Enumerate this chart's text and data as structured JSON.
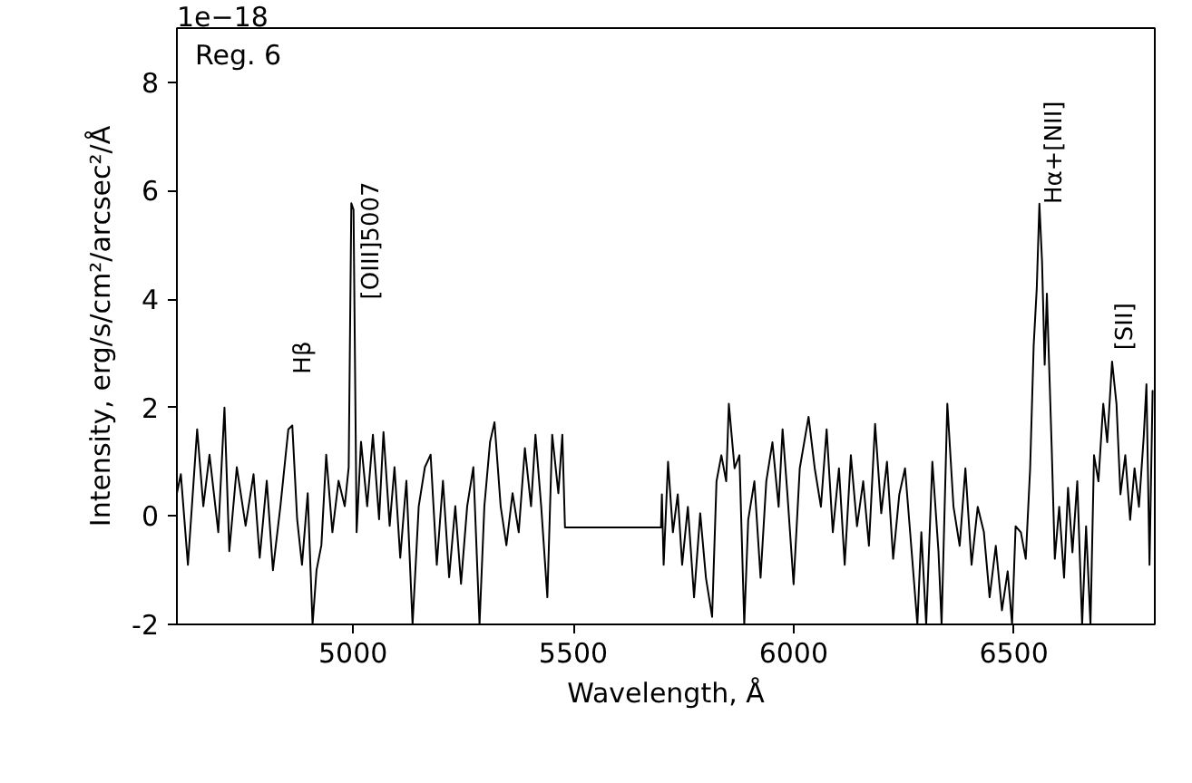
{
  "chart_data": {
    "type": "line",
    "xlabel": "Wavelength, Å",
    "ylabel": "Intensity, erg/s/cm²/arcsec²/Å",
    "annotations": [
      "1e−18",
      "Reg. 6",
      "Hβ",
      "[OIII]5007",
      "Hα+[NII]",
      "[SII]"
    ],
    "xlim": [
      4600,
      6820
    ],
    "ylim": [
      -2,
      9
    ],
    "xticks": [
      5000,
      5500,
      6000,
      6500
    ],
    "yticks": [
      -2,
      0,
      2,
      4,
      6,
      8
    ],
    "grid": false,
    "line_style": "solid",
    "series": [
      {
        "color": "#000000",
        "x": [
          4600,
          4609,
          4625,
          4646,
          4660,
          4674,
          4694,
          4708,
          4719,
          4736,
          4756,
          4774,
          4788,
          4804,
          4818,
          4835,
          4853,
          4862,
          4873,
          4884,
          4897,
          4908,
          4917,
          4928,
          4939,
          4953,
          4967,
          4981,
          4990,
          4996,
          5001,
          5008,
          5018,
          5032,
          5045,
          5059,
          5069,
          5083,
          5094,
          5107,
          5121,
          5135,
          5149,
          5163,
          5176,
          5190,
          5204,
          5218,
          5232,
          5245,
          5259,
          5273,
          5287,
          5298,
          5311,
          5321,
          5335,
          5348,
          5362,
          5376,
          5390,
          5404,
          5414,
          5427,
          5441,
          5452,
          5466,
          5475,
          5481,
          5699,
          5701,
          5705,
          5715,
          5726,
          5737,
          5747,
          5760,
          5774,
          5788,
          5801,
          5815,
          5825,
          5836,
          5847,
          5853,
          5866,
          5877,
          5888,
          5897,
          5911,
          5925,
          5938,
          5952,
          5966,
          5975,
          5986,
          6000,
          6014,
          6034,
          6048,
          6062,
          6075,
          6089,
          6103,
          6116,
          6130,
          6144,
          6158,
          6171,
          6185,
          6199,
          6212,
          6226,
          6240,
          6253,
          6267,
          6281,
          6290,
          6301,
          6315,
          6329,
          6336,
          6349,
          6363,
          6377,
          6390,
          6404,
          6418,
          6432,
          6445,
          6459,
          6473,
          6486,
          6496,
          6504,
          6516,
          6527,
          6537,
          6545,
          6552,
          6558,
          6564,
          6570,
          6575,
          6581,
          6586,
          6593,
          6603,
          6614,
          6623,
          6633,
          6644,
          6655,
          6664,
          6674,
          6682,
          6692,
          6703,
          6712,
          6723,
          6733,
          6742,
          6753,
          6764,
          6774,
          6784,
          6795,
          6801,
          6808,
          6815
        ],
        "values": [
          0.42,
          0.77,
          -0.9,
          1.6,
          0.18,
          1.13,
          -0.3,
          2.0,
          -0.65,
          0.9,
          -0.18,
          0.77,
          -0.77,
          0.65,
          -1.0,
          0.18,
          1.6,
          1.67,
          -0.06,
          -0.9,
          0.42,
          -2.0,
          -1.0,
          -0.54,
          1.13,
          -0.3,
          0.65,
          0.18,
          0.9,
          5.77,
          5.65,
          -0.3,
          1.37,
          0.18,
          1.5,
          -0.06,
          1.55,
          -0.18,
          0.9,
          -0.77,
          0.65,
          -2.0,
          0.18,
          0.9,
          1.13,
          -0.9,
          0.65,
          -1.13,
          0.18,
          -1.25,
          0.18,
          0.9,
          -2.0,
          0.18,
          1.37,
          1.73,
          0.18,
          -0.54,
          0.42,
          -0.3,
          1.25,
          0.18,
          1.5,
          0.18,
          -1.5,
          1.5,
          0.42,
          1.5,
          -0.21,
          -0.21,
          0.4,
          -0.9,
          1.0,
          -0.3,
          0.4,
          -0.9,
          0.17,
          -1.5,
          0.05,
          -1.14,
          -1.86,
          0.64,
          1.12,
          0.64,
          2.07,
          0.88,
          1.12,
          -2.0,
          -0.07,
          0.64,
          -1.14,
          0.64,
          1.36,
          0.17,
          1.6,
          0.4,
          -1.26,
          0.88,
          1.83,
          0.88,
          0.17,
          1.6,
          -0.3,
          0.88,
          -0.9,
          1.12,
          -0.19,
          0.64,
          -0.55,
          1.7,
          0.05,
          1.0,
          -0.79,
          0.4,
          0.88,
          -0.55,
          -2.0,
          -0.3,
          -2.0,
          1.0,
          -0.67,
          -2.0,
          2.07,
          0.17,
          -0.55,
          0.88,
          -0.9,
          0.17,
          -0.3,
          -1.5,
          -0.55,
          -1.74,
          -1.02,
          -2.0,
          -0.19,
          -0.3,
          -0.79,
          0.88,
          3.14,
          4.2,
          5.76,
          4.7,
          2.79,
          4.1,
          2.55,
          1.24,
          -0.79,
          0.17,
          -1.14,
          0.52,
          -0.67,
          0.64,
          -2.0,
          -0.19,
          -2.0,
          1.12,
          0.64,
          2.07,
          1.36,
          2.85,
          2.07,
          0.4,
          1.12,
          -0.07,
          0.88,
          0.17,
          1.48,
          2.43,
          -0.9,
          2.31
        ]
      }
    ]
  }
}
